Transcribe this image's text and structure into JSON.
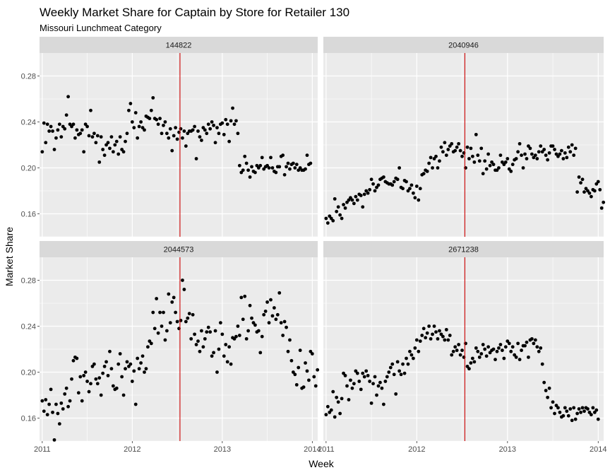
{
  "chart_data": {
    "type": "scatter",
    "title": "Weekly Market Share for Captain by Store for Retailer 130",
    "subtitle": "Missouri Lunchmeat Category",
    "xlabel": "Week",
    "ylabel": "Market Share",
    "x_tick_labels": [
      "2011",
      "2012",
      "2013",
      "2014"
    ],
    "y_tick_labels": [
      "0.16",
      "0.20",
      "0.24",
      "0.28"
    ],
    "colors": {
      "panel_bg": "#ebebeb",
      "grid": "#ffffff",
      "strip_bg": "#d9d9d9",
      "point": "#000000",
      "vline": "#cc0000"
    },
    "vline_year": 2012.53,
    "panels": [
      {
        "label": "144822",
        "ylim": [
          0.14,
          0.3
        ],
        "xlim": [
          2010.97,
          2014.06
        ]
      },
      {
        "label": "2040946",
        "ylim": [
          0.14,
          0.3
        ],
        "xlim": [
          2010.97,
          2014.06
        ]
      },
      {
        "label": "2044573",
        "ylim": [
          0.14,
          0.3
        ],
        "xlim": [
          2010.97,
          2014.06
        ]
      },
      {
        "label": "2671238",
        "ylim": [
          0.14,
          0.3
        ],
        "xlim": [
          2010.97,
          2014.06
        ]
      }
    ],
    "series_x_start": 2011.0,
    "series_x_step": 0.01923,
    "series": [
      {
        "panel": "144822",
        "values": [
          0.214,
          0.239,
          0.222,
          0.238,
          0.232,
          0.236,
          0.232,
          0.216,
          0.226,
          0.233,
          0.238,
          0.227,
          0.236,
          0.234,
          0.246,
          0.262,
          0.238,
          0.236,
          0.238,
          0.226,
          0.233,
          0.229,
          0.23,
          0.233,
          0.214,
          0.238,
          0.236,
          0.228,
          0.25,
          0.227,
          0.23,
          0.222,
          0.228,
          0.205,
          0.227,
          0.216,
          0.211,
          0.22,
          0.222,
          0.217,
          0.227,
          0.214,
          0.22,
          0.223,
          0.212,
          0.227,
          0.216,
          0.214,
          0.223,
          0.23,
          0.25,
          0.256,
          0.24,
          0.235,
          0.248,
          0.226,
          0.236,
          0.24,
          0.235,
          0.233,
          0.245,
          0.244,
          0.243,
          0.25,
          0.261,
          0.243,
          0.242,
          0.238,
          0.243,
          0.23,
          0.237,
          0.24,
          0.23,
          0.226,
          0.234,
          0.215,
          0.228,
          0.235,
          0.225,
          0.231,
          0.234,
          0.226,
          0.232,
          0.219,
          0.23,
          0.232,
          0.232,
          0.233,
          0.236,
          0.208,
          0.232,
          0.227,
          0.224,
          0.235,
          0.233,
          0.23,
          0.238,
          0.234,
          0.24,
          0.237,
          0.222,
          0.235,
          0.23,
          0.238,
          0.239,
          0.229,
          0.242,
          0.238,
          0.223,
          0.241,
          0.252,
          0.238,
          0.241,
          0.23,
          0.202,
          0.196,
          0.198,
          0.21,
          0.204,
          0.198,
          0.192,
          0.201,
          0.197,
          0.196,
          0.202,
          0.2,
          0.202,
          0.209,
          0.199,
          0.201,
          0.202,
          0.2,
          0.209,
          0.2,
          0.197,
          0.196,
          0.201,
          0.201,
          0.21,
          0.211,
          0.194,
          0.201,
          0.204,
          0.199,
          0.203,
          0.204,
          0.2,
          0.203,
          0.198,
          0.2,
          0.198,
          0.198,
          0.199,
          0.211,
          0.203,
          0.204
        ]
      },
      {
        "panel": "2040946",
        "values": [
          0.156,
          0.152,
          0.158,
          0.156,
          0.154,
          0.173,
          0.162,
          0.166,
          0.159,
          0.156,
          0.168,
          0.165,
          0.17,
          0.172,
          0.174,
          0.172,
          0.169,
          0.175,
          0.172,
          0.177,
          0.176,
          0.166,
          0.177,
          0.18,
          0.178,
          0.181,
          0.19,
          0.186,
          0.18,
          0.183,
          0.185,
          0.19,
          0.191,
          0.192,
          0.188,
          0.187,
          0.186,
          0.186,
          0.185,
          0.188,
          0.191,
          0.19,
          0.2,
          0.183,
          0.182,
          0.189,
          0.188,
          0.18,
          0.182,
          0.185,
          0.178,
          0.174,
          0.184,
          0.172,
          0.182,
          0.194,
          0.195,
          0.198,
          0.197,
          0.204,
          0.209,
          0.2,
          0.208,
          0.21,
          0.2,
          0.206,
          0.218,
          0.214,
          0.222,
          0.211,
          0.216,
          0.219,
          0.221,
          0.214,
          0.215,
          0.218,
          0.221,
          0.215,
          0.21,
          0.213,
          0.2,
          0.218,
          0.208,
          0.217,
          0.21,
          0.205,
          0.229,
          0.211,
          0.206,
          0.217,
          0.195,
          0.206,
          0.199,
          0.212,
          0.202,
          0.205,
          0.203,
          0.198,
          0.198,
          0.2,
          0.211,
          0.205,
          0.203,
          0.205,
          0.208,
          0.199,
          0.197,
          0.203,
          0.207,
          0.208,
          0.214,
          0.221,
          0.211,
          0.2,
          0.212,
          0.208,
          0.219,
          0.217,
          0.212,
          0.209,
          0.211,
          0.208,
          0.214,
          0.219,
          0.214,
          0.216,
          0.211,
          0.207,
          0.213,
          0.219,
          0.219,
          0.216,
          0.212,
          0.21,
          0.212,
          0.215,
          0.208,
          0.213,
          0.209,
          0.218,
          0.214,
          0.22,
          0.211,
          0.217,
          0.179,
          0.192,
          0.187,
          0.19,
          0.179,
          0.182,
          0.18,
          0.178,
          0.175,
          0.181,
          0.18,
          0.186,
          0.188,
          0.181,
          0.165,
          0.17,
          0.187,
          0.176
        ]
      },
      {
        "panel": "2044573",
        "values": [
          0.175,
          0.166,
          0.176,
          0.163,
          0.172,
          0.185,
          0.165,
          0.141,
          0.172,
          0.164,
          0.155,
          0.173,
          0.168,
          0.181,
          0.186,
          0.17,
          0.175,
          0.194,
          0.21,
          0.213,
          0.212,
          0.182,
          0.196,
          0.175,
          0.197,
          0.2,
          0.192,
          0.183,
          0.19,
          0.205,
          0.207,
          0.194,
          0.19,
          0.195,
          0.18,
          0.199,
          0.205,
          0.209,
          0.197,
          0.218,
          0.203,
          0.188,
          0.185,
          0.186,
          0.207,
          0.216,
          0.196,
          0.18,
          0.203,
          0.209,
          0.205,
          0.207,
          0.192,
          0.201,
          0.172,
          0.212,
          0.203,
          0.208,
          0.214,
          0.2,
          0.203,
          0.222,
          0.227,
          0.225,
          0.252,
          0.238,
          0.264,
          0.234,
          0.252,
          0.24,
          0.252,
          0.228,
          0.236,
          0.268,
          0.243,
          0.261,
          0.265,
          0.252,
          0.244,
          0.238,
          0.245,
          0.28,
          0.272,
          0.244,
          0.247,
          0.251,
          0.229,
          0.25,
          0.233,
          0.224,
          0.227,
          0.218,
          0.236,
          0.222,
          0.229,
          0.235,
          0.239,
          0.235,
          0.214,
          0.217,
          0.236,
          0.2,
          0.22,
          0.243,
          0.233,
          0.214,
          0.224,
          0.209,
          0.222,
          0.207,
          0.23,
          0.229,
          0.231,
          0.24,
          0.232,
          0.265,
          0.246,
          0.266,
          0.229,
          0.236,
          0.258,
          0.247,
          0.243,
          0.241,
          0.235,
          0.236,
          0.217,
          0.231,
          0.25,
          0.253,
          0.261,
          0.243,
          0.263,
          0.249,
          0.256,
          0.246,
          0.25,
          0.269,
          0.243,
          0.232,
          0.244,
          0.239,
          0.218,
          0.228,
          0.21,
          0.2,
          0.198,
          0.189,
          0.204,
          0.219,
          0.186,
          0.187,
          0.208,
          0.201,
          0.193,
          0.218,
          0.216,
          0.196,
          0.188,
          0.202,
          0.194,
          0.208
        ]
      },
      {
        "panel": "2671238",
        "values": [
          0.163,
          0.17,
          0.165,
          0.167,
          0.183,
          0.161,
          0.178,
          0.174,
          0.164,
          0.177,
          0.199,
          0.197,
          0.188,
          0.176,
          0.193,
          0.186,
          0.19,
          0.201,
          0.199,
          0.192,
          0.185,
          0.199,
          0.196,
          0.201,
          0.197,
          0.192,
          0.173,
          0.19,
          0.196,
          0.18,
          0.188,
          0.191,
          0.186,
          0.172,
          0.192,
          0.196,
          0.2,
          0.204,
          0.207,
          0.198,
          0.181,
          0.209,
          0.201,
          0.198,
          0.207,
          0.199,
          0.212,
          0.207,
          0.218,
          0.215,
          0.212,
          0.221,
          0.228,
          0.218,
          0.227,
          0.232,
          0.238,
          0.23,
          0.234,
          0.24,
          0.229,
          0.233,
          0.24,
          0.235,
          0.229,
          0.236,
          0.233,
          0.231,
          0.228,
          0.237,
          0.228,
          0.232,
          0.215,
          0.218,
          0.222,
          0.219,
          0.224,
          0.215,
          0.219,
          0.213,
          0.225,
          0.205,
          0.203,
          0.208,
          0.212,
          0.209,
          0.221,
          0.218,
          0.213,
          0.216,
          0.224,
          0.22,
          0.214,
          0.222,
          0.217,
          0.219,
          0.22,
          0.211,
          0.218,
          0.221,
          0.224,
          0.219,
          0.212,
          0.222,
          0.227,
          0.225,
          0.218,
          0.222,
          0.215,
          0.213,
          0.225,
          0.211,
          0.219,
          0.223,
          0.223,
          0.226,
          0.213,
          0.228,
          0.229,
          0.225,
          0.228,
          0.222,
          0.218,
          0.221,
          0.207,
          0.191,
          0.184,
          0.178,
          0.186,
          0.169,
          0.174,
          0.164,
          0.171,
          0.169,
          0.165,
          0.161,
          0.162,
          0.169,
          0.166,
          0.162,
          0.168,
          0.158,
          0.169,
          0.159,
          0.164,
          0.168,
          0.165,
          0.169,
          0.166,
          0.169,
          0.168,
          0.165,
          0.163,
          0.169,
          0.165,
          0.167,
          0.159
        ]
      }
    ]
  }
}
